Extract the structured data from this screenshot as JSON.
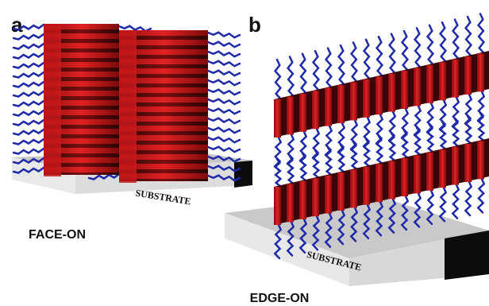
{
  "panels": [
    {
      "letter": "a",
      "caption": "FACE-ON",
      "substrate_label": "SUBSTRATE"
    },
    {
      "letter": "b",
      "caption": "EDGE-ON",
      "substrate_label": "SUBSTRATE"
    }
  ],
  "colors": {
    "stack_red": "#d0191b",
    "stack_dark": "#3a0506",
    "chain_blue": "#1f2aa8",
    "substrate_top": "#c8c8c8",
    "substrate_front": "#e6e6e6",
    "substrate_side": "#0a0a0a"
  }
}
